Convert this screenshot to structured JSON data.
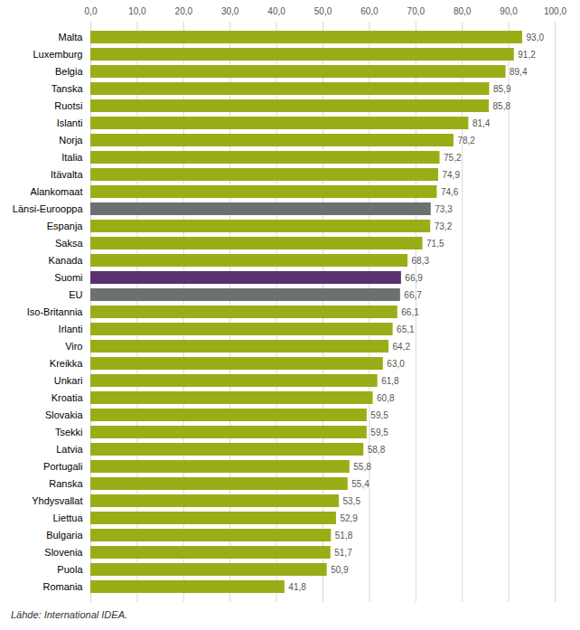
{
  "chart_data": {
    "type": "bar",
    "orientation": "horizontal",
    "caption": "Lähde: International IDEA.",
    "categories": [
      "Malta",
      "Luxemburg",
      "Belgia",
      "Tanska",
      "Ruotsi",
      "Islanti",
      "Norja",
      "Italia",
      "Itävalta",
      "Alankomaat",
      "Länsi-Eurooppa",
      "Espanja",
      "Saksa",
      "Kanada",
      "Suomi",
      "EU",
      "Iso-Britannia",
      "Irlanti",
      "Viro",
      "Kreikka",
      "Unkari",
      "Kroatia",
      "Slovakia",
      "Tsekki",
      "Latvia",
      "Portugali",
      "Ranska",
      "Yhdysvallat",
      "Liettua",
      "Bulgaria",
      "Slovenia",
      "Puola",
      "Romania"
    ],
    "values": [
      93.0,
      91.2,
      89.4,
      85.9,
      85.8,
      81.4,
      78.2,
      75.2,
      74.9,
      74.6,
      73.3,
      73.2,
      71.5,
      68.3,
      66.9,
      66.7,
      66.1,
      65.1,
      64.2,
      63.0,
      61.8,
      60.8,
      59.5,
      59.5,
      58.8,
      55.8,
      55.4,
      53.5,
      52.9,
      51.8,
      51.7,
      50.9,
      41.8
    ],
    "value_labels": [
      "93,0",
      "91,2",
      "89,4",
      "85,9",
      "85,8",
      "81,4",
      "78,2",
      "75,2",
      "74,9",
      "74,6",
      "73,3",
      "73,2",
      "71,5",
      "68,3",
      "66,9",
      "66,7",
      "66,1",
      "65,1",
      "64,2",
      "63,0",
      "61,8",
      "60,8",
      "59,5",
      "59,5",
      "58,8",
      "55,8",
      "55,4",
      "53,5",
      "52,9",
      "51,8",
      "51,7",
      "50,9",
      "41,8"
    ],
    "colors": [
      "#9aad17",
      "#9aad17",
      "#9aad17",
      "#9aad17",
      "#9aad17",
      "#9aad17",
      "#9aad17",
      "#9aad17",
      "#9aad17",
      "#9aad17",
      "#6b7070",
      "#9aad17",
      "#9aad17",
      "#9aad17",
      "#5b3070",
      "#6b7070",
      "#9aad17",
      "#9aad17",
      "#9aad17",
      "#9aad17",
      "#9aad17",
      "#9aad17",
      "#9aad17",
      "#9aad17",
      "#9aad17",
      "#9aad17",
      "#9aad17",
      "#9aad17",
      "#9aad17",
      "#9aad17",
      "#9aad17",
      "#9aad17",
      "#9aad17"
    ],
    "xlim": [
      0,
      100
    ],
    "xticks": [
      {
        "value": 0,
        "label": "0,0"
      },
      {
        "value": 10,
        "label": "10,0"
      },
      {
        "value": 20,
        "label": "20,0"
      },
      {
        "value": 30,
        "label": "30,0"
      },
      {
        "value": 40,
        "label": "40,0"
      },
      {
        "value": 50,
        "label": "50,0"
      },
      {
        "value": 60,
        "label": "60,0"
      },
      {
        "value": 70,
        "label": "70,0"
      },
      {
        "value": 80,
        "label": "80,0"
      },
      {
        "value": 90,
        "label": "90,0"
      },
      {
        "value": 100,
        "label": "100,0"
      }
    ],
    "grid": true,
    "data_labels": true
  }
}
